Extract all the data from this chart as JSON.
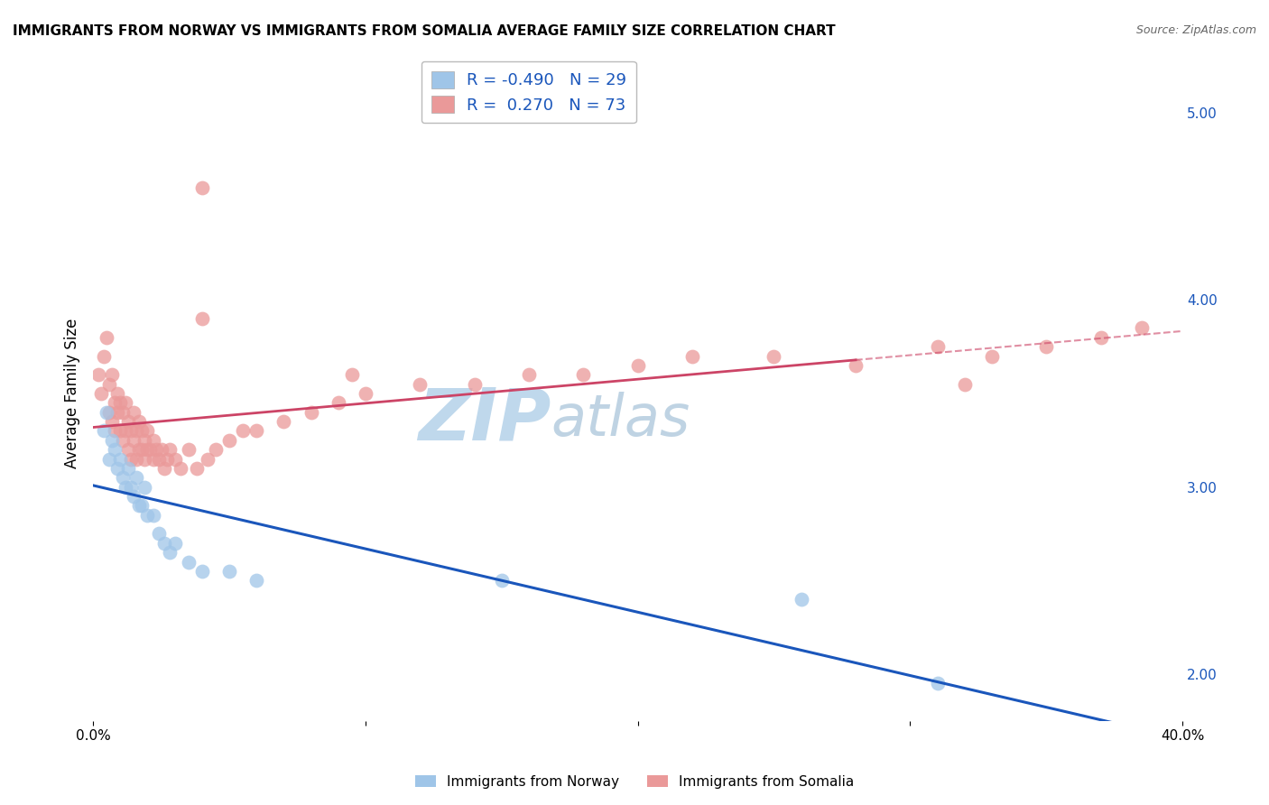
{
  "title": "IMMIGRANTS FROM NORWAY VS IMMIGRANTS FROM SOMALIA AVERAGE FAMILY SIZE CORRELATION CHART",
  "source": "Source: ZipAtlas.com",
  "ylabel": "Average Family Size",
  "xlim": [
    0.0,
    0.4
  ],
  "ylim": [
    1.75,
    5.25
  ],
  "yticks_right": [
    2.0,
    3.0,
    4.0,
    5.0
  ],
  "xtick_positions": [
    0.0,
    0.1,
    0.2,
    0.3,
    0.4
  ],
  "xtick_labels": [
    "0.0%",
    "",
    "",
    "",
    "40.0%"
  ],
  "norway_color": "#9fc5e8",
  "somalia_color": "#ea9999",
  "norway_line_color": "#1a56bb",
  "somalia_line_color": "#cc4466",
  "norway_R": -0.49,
  "norway_N": 29,
  "somalia_R": 0.27,
  "somalia_N": 73,
  "norway_scatter_x": [
    0.004,
    0.005,
    0.006,
    0.007,
    0.008,
    0.009,
    0.01,
    0.011,
    0.012,
    0.013,
    0.014,
    0.015,
    0.016,
    0.017,
    0.018,
    0.019,
    0.02,
    0.022,
    0.024,
    0.026,
    0.028,
    0.03,
    0.035,
    0.04,
    0.05,
    0.06,
    0.15,
    0.26,
    0.31
  ],
  "norway_scatter_y": [
    3.3,
    3.4,
    3.15,
    3.25,
    3.2,
    3.1,
    3.15,
    3.05,
    3.0,
    3.1,
    3.0,
    2.95,
    3.05,
    2.9,
    2.9,
    3.0,
    2.85,
    2.85,
    2.75,
    2.7,
    2.65,
    2.7,
    2.6,
    2.55,
    2.55,
    2.5,
    2.5,
    2.4,
    1.95
  ],
  "somalia_scatter_x": [
    0.002,
    0.003,
    0.004,
    0.005,
    0.006,
    0.006,
    0.007,
    0.007,
    0.008,
    0.008,
    0.009,
    0.009,
    0.01,
    0.01,
    0.011,
    0.011,
    0.012,
    0.012,
    0.013,
    0.013,
    0.014,
    0.014,
    0.015,
    0.015,
    0.016,
    0.016,
    0.017,
    0.017,
    0.018,
    0.018,
    0.019,
    0.019,
    0.02,
    0.02,
    0.021,
    0.022,
    0.022,
    0.023,
    0.024,
    0.025,
    0.026,
    0.027,
    0.028,
    0.03,
    0.032,
    0.035,
    0.038,
    0.04,
    0.042,
    0.045,
    0.05,
    0.055,
    0.06,
    0.07,
    0.08,
    0.09,
    0.1,
    0.12,
    0.14,
    0.16,
    0.18,
    0.2,
    0.22,
    0.25,
    0.28,
    0.31,
    0.33,
    0.35,
    0.37,
    0.385,
    0.04,
    0.095,
    0.32
  ],
  "somalia_scatter_y": [
    3.6,
    3.5,
    3.7,
    3.8,
    3.4,
    3.55,
    3.35,
    3.6,
    3.45,
    3.3,
    3.4,
    3.5,
    3.3,
    3.45,
    3.25,
    3.4,
    3.3,
    3.45,
    3.2,
    3.35,
    3.15,
    3.3,
    3.25,
    3.4,
    3.15,
    3.3,
    3.2,
    3.35,
    3.2,
    3.3,
    3.25,
    3.15,
    3.2,
    3.3,
    3.2,
    3.15,
    3.25,
    3.2,
    3.15,
    3.2,
    3.1,
    3.15,
    3.2,
    3.15,
    3.1,
    3.2,
    3.1,
    4.6,
    3.15,
    3.2,
    3.25,
    3.3,
    3.3,
    3.35,
    3.4,
    3.45,
    3.5,
    3.55,
    3.55,
    3.6,
    3.6,
    3.65,
    3.7,
    3.7,
    3.65,
    3.75,
    3.7,
    3.75,
    3.8,
    3.85,
    3.9,
    3.6,
    3.55
  ],
  "watermark_zip": "ZIP",
  "watermark_atlas": "atlas",
  "watermark_color_zip": "#b8d4ea",
  "watermark_color_atlas": "#b8cfe0",
  "background_color": "#ffffff",
  "grid_color": "#cccccc",
  "grid_style": "--"
}
